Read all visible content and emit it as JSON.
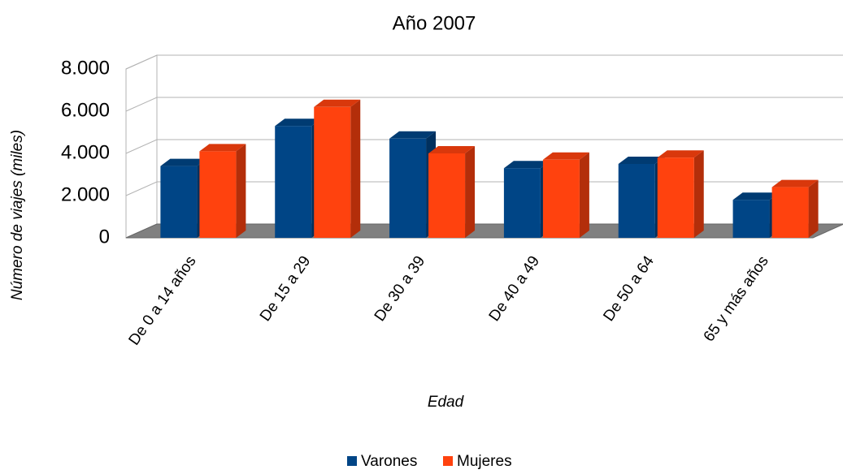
{
  "chart_data": {
    "type": "bar3d",
    "title": "Año 2007",
    "x_label": "Edad",
    "y_label": "Número de viajes (miles)",
    "categories": [
      "De 0 a 14 años",
      "De 15 a 29",
      "De 30 a 39",
      "De 40 a 49",
      "De 50 a 64",
      "65 y más años"
    ],
    "series": [
      {
        "name": "Varones",
        "color": "#004586",
        "values": [
          3400,
          5300,
          4700,
          3300,
          3500,
          1800
        ]
      },
      {
        "name": "Mujeres",
        "color": "#ff420e",
        "values": [
          4100,
          6200,
          4000,
          3700,
          3800,
          2400
        ]
      }
    ],
    "ylim": [
      0,
      8000
    ],
    "yticks": [
      0,
      {
        "value": 2000,
        "label": "2.000"
      },
      {
        "value": 4000,
        "label": "4.000"
      },
      {
        "value": 6000,
        "label": "6.000"
      },
      {
        "value": 8000,
        "label": "8.000"
      }
    ],
    "grid": true,
    "legend": "bottom"
  }
}
